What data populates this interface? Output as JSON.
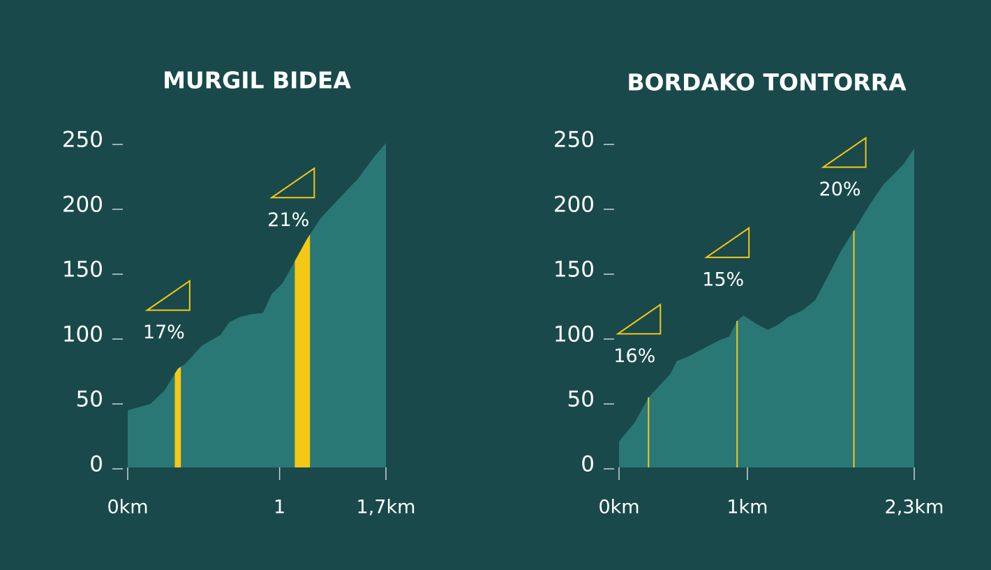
{
  "chart_data": [
    {
      "type": "area",
      "title": "MURGIL BIDEA",
      "color": "#2a7876",
      "highlight_color": "#f5c816",
      "x": [
        0,
        0.15,
        0.24,
        0.33,
        0.38,
        0.49,
        0.61,
        0.67,
        0.74,
        0.81,
        0.89,
        0.95,
        1.02,
        1.1,
        1.18,
        1.27,
        1.39,
        1.52,
        1.55,
        1.62,
        1.7
      ],
      "values": [
        44,
        49,
        59,
        76,
        80,
        94,
        102,
        112,
        116,
        118,
        119,
        134,
        142,
        159,
        176,
        192,
        207,
        223,
        228,
        239,
        250
      ],
      "xlim": [
        0,
        1.7
      ],
      "xticks": [
        {
          "value": 0,
          "label": "0km"
        },
        1,
        {
          "value": 1.7,
          "label": "1,7km"
        }
      ],
      "ylim": [
        0,
        250
      ],
      "yticks": [
        0,
        50,
        100,
        150,
        200,
        250
      ],
      "segments": [
        {
          "label": "17%",
          "x": [
            0.31,
            0.35
          ]
        },
        {
          "label": "21%",
          "x": [
            1.1,
            1.2
          ]
        }
      ]
    },
    {
      "type": "area",
      "title": "BORDAKO TONTORRA",
      "color": "#2a7876",
      "highlight_color": "#f5c816",
      "x": [
        0,
        0.125,
        0.23,
        0.4,
        0.45,
        0.53,
        0.78,
        0.86,
        0.92,
        0.97,
        1.08,
        1.16,
        1.24,
        1.32,
        1.43,
        1.53,
        1.62,
        1.73,
        1.84,
        1.95,
        2.06,
        2.22,
        2.3
      ],
      "values": [
        20,
        35,
        54,
        72,
        82,
        85,
        98,
        101,
        113,
        117,
        110,
        106,
        110,
        116,
        121,
        129,
        146,
        167,
        184,
        202,
        218,
        234,
        246
      ],
      "xlim": [
        0,
        2.3
      ],
      "xticks": [
        {
          "value": 0,
          "label": "0km"
        },
        {
          "value": 1,
          "label": "1km"
        },
        {
          "value": 2.3,
          "label": "2,3km"
        }
      ],
      "ylim": [
        0,
        250
      ],
      "yticks": [
        0,
        50,
        100,
        150,
        200,
        250
      ],
      "segments": [
        {
          "label": "16%",
          "x": 0.23
        },
        {
          "label": "15%",
          "x": 0.92
        },
        {
          "label": "20%",
          "x": 1.83
        }
      ]
    }
  ]
}
